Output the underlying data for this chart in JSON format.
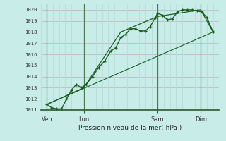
{
  "title": "Pression niveau de la mer( hPa )",
  "bg_color": "#c8ede8",
  "plot_bg_color": "#c8ede8",
  "grid_color_h": "#b8ddd8",
  "grid_color_v": "#c0b8c8",
  "line_color": "#1a5c20",
  "ylim": [
    1011,
    1020.5
  ],
  "yticks": [
    1011,
    1012,
    1013,
    1014,
    1015,
    1016,
    1017,
    1018,
    1019,
    1020
  ],
  "xlim": [
    0,
    14.5
  ],
  "xtick_labels": [
    "Ven",
    "Lun",
    "Sam",
    "Dim"
  ],
  "xtick_positions": [
    0.5,
    3.5,
    9.5,
    13.0
  ],
  "vline_positions": [
    0.5,
    3.5,
    9.5,
    13.0
  ],
  "line1_x": [
    0.5,
    0.9,
    1.3,
    1.7,
    2.1,
    2.5,
    2.9,
    3.3,
    3.7,
    4.2,
    4.7,
    5.2,
    5.7,
    6.1,
    6.5,
    6.9,
    7.3,
    7.7,
    8.1,
    8.5,
    8.9,
    9.3,
    9.5,
    9.9,
    10.3,
    10.7,
    11.1,
    11.5,
    11.9,
    12.3,
    12.7,
    13.1,
    13.5,
    14.0
  ],
  "line1_y": [
    1011.5,
    1011.2,
    1011.1,
    1011.1,
    1012.0,
    1012.8,
    1013.3,
    1013.0,
    1013.3,
    1014.0,
    1014.8,
    1015.4,
    1016.3,
    1016.6,
    1017.5,
    1017.8,
    1018.3,
    1018.3,
    1018.1,
    1018.1,
    1018.5,
    1019.3,
    1019.7,
    1019.5,
    1019.1,
    1019.2,
    1019.8,
    1020.0,
    1020.0,
    1020.0,
    1019.9,
    1019.8,
    1019.3,
    1018.0
  ],
  "line2_x": [
    0.5,
    3.5,
    6.5,
    9.5,
    13.0,
    14.0
  ],
  "line2_y": [
    1011.5,
    1013.0,
    1018.0,
    1019.4,
    1020.0,
    1018.0
  ],
  "line3_x": [
    0.5,
    14.0
  ],
  "line3_y": [
    1011.5,
    1018.0
  ]
}
